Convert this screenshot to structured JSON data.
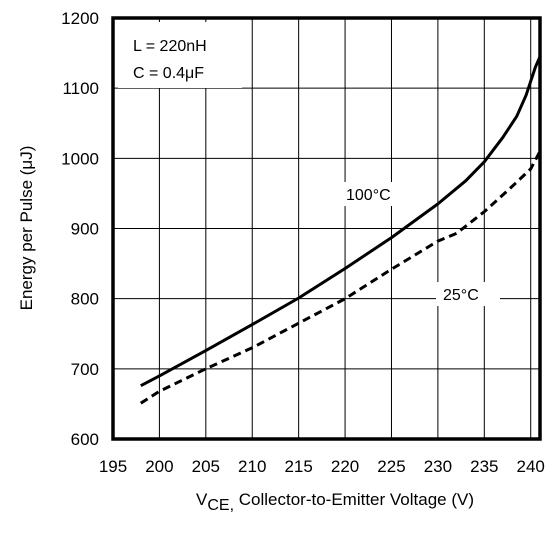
{
  "chart_data": {
    "type": "line",
    "xlabel_main": "V",
    "xlabel_sub": "CE,",
    "xlabel_rest": " Collector-to-Emitter Voltage (V)",
    "ylabel": "Energy per Pulse (μJ)",
    "xlim": [
      195,
      241
    ],
    "ylim": [
      600,
      1200
    ],
    "xticks": [
      195,
      200,
      205,
      210,
      215,
      220,
      225,
      230,
      235,
      240
    ],
    "yticks": [
      600,
      700,
      800,
      900,
      1000,
      1100,
      1200
    ],
    "grid": true,
    "annotations": [
      "L = 220nH",
      "C = 0.4μF"
    ],
    "series": [
      {
        "name": "100°C",
        "style": "solid",
        "x": [
          198,
          200,
          205,
          210,
          215,
          220,
          225,
          230,
          233,
          235,
          237,
          238.5,
          239.5,
          240.5,
          241
        ],
        "y": [
          676,
          690,
          726,
          763,
          801,
          843,
          887,
          935,
          968,
          995,
          1030,
          1060,
          1090,
          1130,
          1145
        ]
      },
      {
        "name": "25°C",
        "style": "dashed",
        "x": [
          198,
          200,
          205,
          210,
          215,
          220,
          225,
          230,
          232,
          235,
          238,
          240,
          241
        ],
        "y": [
          651,
          668,
          700,
          730,
          765,
          800,
          842,
          882,
          893,
          924,
          960,
          985,
          1010
        ]
      }
    ]
  }
}
